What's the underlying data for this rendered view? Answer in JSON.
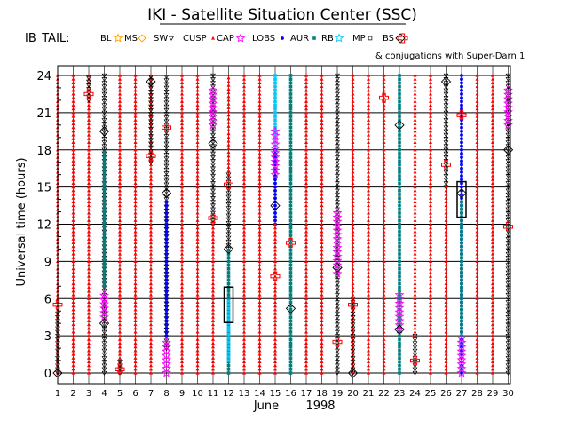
{
  "title": "IKI - Satellite Situation Center (SSC)",
  "region_label": "IB_TAIL:",
  "conjugations_label": "& conjugations with Super-Darn 1",
  "legend": [
    {
      "label": "BL",
      "marker": "star",
      "color": "#ffa000"
    },
    {
      "label": "MS",
      "marker": "diamond-star",
      "color": "#ffa000"
    },
    {
      "label": "SW",
      "marker": "triangle-down",
      "color": "#000000"
    },
    {
      "label": "CUSP",
      "marker": "triangle",
      "color": "#ff0000"
    },
    {
      "label": "CAP",
      "marker": "star",
      "color": "#ff00ff"
    },
    {
      "label": "LOBS",
      "marker": "dot",
      "color": "#0000ff"
    },
    {
      "label": "AUR",
      "marker": "square",
      "color": "#008080"
    },
    {
      "label": "RB",
      "marker": "star",
      "color": "#00c8ff"
    },
    {
      "label": "MP",
      "marker": "square-open",
      "color": "#000000"
    },
    {
      "label": "BS",
      "marker": "diamond",
      "color": "#000000"
    },
    {
      "label": "",
      "marker": "cross",
      "color": "#ff0000"
    }
  ],
  "chart_data": {
    "type": "scatter",
    "title": "IKI - Satellite Situation Center (SSC)",
    "xlabel": "June 1998",
    "x_month": "June",
    "x_year": "1998",
    "ylabel": "Universal time (hours)",
    "xlim": [
      1,
      30
    ],
    "ylim": [
      0,
      24
    ],
    "xticks": [
      "1",
      "2",
      "3",
      "4",
      "5",
      "6",
      "7",
      "8",
      "9",
      "10",
      "11",
      "12",
      "13",
      "14",
      "15",
      "16",
      "17",
      "18",
      "19",
      "20",
      "21",
      "22",
      "23",
      "24",
      "25",
      "26",
      "27",
      "28",
      "29",
      "30"
    ],
    "yticks": [
      "0",
      "3",
      "6",
      "9",
      "12",
      "15",
      "18",
      "21",
      "24"
    ],
    "grid": true,
    "colors": {
      "CUSP": "#ff0000",
      "SW": "#000000",
      "LOBS": "#0000ff",
      "AUR": "#008080",
      "RB": "#00c8ff",
      "MP": "#000000",
      "CAP": "#ff00ff",
      "MS": "#ffa000",
      "BS": "#000000",
      "conjugation": "#ff0000"
    },
    "region_segments": [
      {
        "day": 1,
        "region": "CUSP",
        "range": [
          0,
          24
        ]
      },
      {
        "day": 1,
        "region": "SW",
        "range": [
          0,
          5
        ]
      },
      {
        "day": 2,
        "region": "CUSP",
        "range": [
          0,
          24
        ]
      },
      {
        "day": 3,
        "region": "CUSP",
        "range": [
          0,
          24
        ]
      },
      {
        "day": 3,
        "region": "SW",
        "range": [
          22,
          24
        ]
      },
      {
        "day": 4,
        "region": "SW",
        "range": [
          0,
          24
        ]
      },
      {
        "day": 4,
        "region": "AUR",
        "range": [
          7,
          18
        ]
      },
      {
        "day": 4,
        "region": "CAP",
        "range": [
          4.5,
          6.5
        ]
      },
      {
        "day": 5,
        "region": "CUSP",
        "range": [
          0,
          24
        ]
      },
      {
        "day": 5,
        "region": "SW",
        "range": [
          0,
          1
        ]
      },
      {
        "day": 6,
        "region": "CUSP",
        "range": [
          0,
          24
        ]
      },
      {
        "day": 7,
        "region": "CUSP",
        "range": [
          0,
          24
        ]
      },
      {
        "day": 7,
        "region": "SW",
        "range": [
          17,
          24
        ]
      },
      {
        "day": 8,
        "region": "SW",
        "range": [
          2,
          24
        ]
      },
      {
        "day": 8,
        "region": "LOBS",
        "range": [
          3,
          14
        ]
      },
      {
        "day": 8,
        "region": "CAP",
        "range": [
          0,
          2.5
        ]
      },
      {
        "day": 9,
        "region": "CUSP",
        "range": [
          0,
          24
        ]
      },
      {
        "day": 10,
        "region": "CUSP",
        "range": [
          0,
          24
        ]
      },
      {
        "day": 11,
        "region": "SW",
        "range": [
          12,
          24
        ]
      },
      {
        "day": 11,
        "region": "CUSP",
        "range": [
          0,
          12
        ]
      },
      {
        "day": 11,
        "region": "CAP",
        "range": [
          20,
          23
        ]
      },
      {
        "day": 12,
        "region": "SW",
        "range": [
          10,
          16
        ]
      },
      {
        "day": 12,
        "region": "AUR",
        "range": [
          0,
          10
        ]
      },
      {
        "day": 12,
        "region": "RB",
        "range": [
          1,
          6
        ]
      },
      {
        "day": 12,
        "region": "CUSP",
        "range": [
          16,
          24
        ]
      },
      {
        "day": 13,
        "region": "CUSP",
        "range": [
          0,
          24
        ]
      },
      {
        "day": 14,
        "region": "CUSP",
        "range": [
          0,
          24
        ]
      },
      {
        "day": 15,
        "region": "RB",
        "range": [
          18,
          24
        ]
      },
      {
        "day": 15,
        "region": "LOBS",
        "range": [
          12,
          18
        ]
      },
      {
        "day": 15,
        "region": "CUSP",
        "range": [
          0,
          12
        ]
      },
      {
        "day": 15,
        "region": "CAP",
        "range": [
          16,
          19.5
        ]
      },
      {
        "day": 16,
        "region": "AUR",
        "range": [
          0,
          24
        ]
      },
      {
        "day": 17,
        "region": "CUSP",
        "range": [
          0,
          24
        ]
      },
      {
        "day": 18,
        "region": "CUSP",
        "range": [
          0,
          24
        ]
      },
      {
        "day": 19,
        "region": "SW",
        "range": [
          0,
          24
        ]
      },
      {
        "day": 19,
        "region": "CAP",
        "range": [
          8,
          13
        ]
      },
      {
        "day": 20,
        "region": "CUSP",
        "range": [
          0,
          24
        ]
      },
      {
        "day": 20,
        "region": "SW",
        "range": [
          0,
          6
        ]
      },
      {
        "day": 21,
        "region": "CUSP",
        "range": [
          0,
          24
        ]
      },
      {
        "day": 22,
        "region": "CUSP",
        "range": [
          0,
          24
        ]
      },
      {
        "day": 23,
        "region": "AUR",
        "range": [
          0,
          24
        ]
      },
      {
        "day": 23,
        "region": "CAP",
        "range": [
          3.5,
          6.5
        ]
      },
      {
        "day": 24,
        "region": "SW",
        "range": [
          0,
          3
        ]
      },
      {
        "day": 24,
        "region": "CUSP",
        "range": [
          3,
          24
        ]
      },
      {
        "day": 25,
        "region": "CUSP",
        "range": [
          0,
          24
        ]
      },
      {
        "day": 26,
        "region": "SW",
        "range": [
          15,
          24
        ]
      },
      {
        "day": 26,
        "region": "CUSP",
        "range": [
          0,
          15
        ]
      },
      {
        "day": 27,
        "region": "LOBS",
        "range": [
          0,
          24
        ]
      },
      {
        "day": 27,
        "region": "AUR",
        "range": [
          3,
          14
        ]
      },
      {
        "day": 27,
        "region": "CAP",
        "range": [
          0,
          3
        ]
      },
      {
        "day": 28,
        "region": "CUSP",
        "range": [
          0,
          24
        ]
      },
      {
        "day": 29,
        "region": "CUSP",
        "range": [
          0,
          24
        ]
      },
      {
        "day": 30,
        "region": "SW",
        "range": [
          0,
          24
        ]
      },
      {
        "day": 30,
        "region": "CAP",
        "range": [
          20,
          23
        ]
      }
    ],
    "boundary_markers": [
      {
        "day": 1,
        "ut": 0,
        "type": "BS"
      },
      {
        "day": 4,
        "ut": 19.5,
        "type": "BS"
      },
      {
        "day": 4,
        "ut": 4,
        "type": "BS"
      },
      {
        "day": 7,
        "ut": 23.5,
        "type": "BS"
      },
      {
        "day": 8,
        "ut": 14.5,
        "type": "BS"
      },
      {
        "day": 11,
        "ut": 18.5,
        "type": "BS"
      },
      {
        "day": 12,
        "ut": 10,
        "type": "BS"
      },
      {
        "day": 15,
        "ut": 13.5,
        "type": "BS"
      },
      {
        "day": 16,
        "ut": 5.2,
        "type": "BS"
      },
      {
        "day": 19,
        "ut": 8.5,
        "type": "BS"
      },
      {
        "day": 20,
        "ut": 0,
        "type": "BS"
      },
      {
        "day": 23,
        "ut": 20,
        "type": "BS"
      },
      {
        "day": 23,
        "ut": 3.5,
        "type": "BS"
      },
      {
        "day": 26,
        "ut": 23.5,
        "type": "BS"
      },
      {
        "day": 27,
        "ut": 14.5,
        "type": "BS"
      },
      {
        "day": 30,
        "ut": 18,
        "type": "BS"
      },
      {
        "day": 12,
        "ut": 5.5,
        "type": "MP"
      },
      {
        "day": 27,
        "ut": 14,
        "type": "MP"
      }
    ],
    "conjugations": [
      {
        "day": 1,
        "ut": 5.5
      },
      {
        "day": 3,
        "ut": 22.5
      },
      {
        "day": 5,
        "ut": 0.3
      },
      {
        "day": 7,
        "ut": 17.5
      },
      {
        "day": 8,
        "ut": 19.8
      },
      {
        "day": 11,
        "ut": 12.5
      },
      {
        "day": 12,
        "ut": 15.2
      },
      {
        "day": 15,
        "ut": 7.8
      },
      {
        "day": 16,
        "ut": 10.5
      },
      {
        "day": 19,
        "ut": 2.5
      },
      {
        "day": 20,
        "ut": 5.5
      },
      {
        "day": 22,
        "ut": 22.2
      },
      {
        "day": 24,
        "ut": 1
      },
      {
        "day": 26,
        "ut": 16.8
      },
      {
        "day": 27,
        "ut": 20.8
      },
      {
        "day": 30,
        "ut": 11.8
      }
    ]
  }
}
